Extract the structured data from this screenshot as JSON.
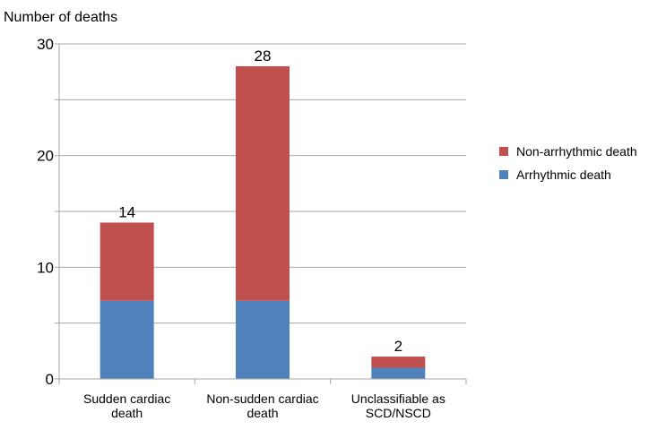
{
  "chart_data": {
    "type": "bar",
    "stacked": true,
    "ylabel": "Number of deaths",
    "categories": [
      [
        "Sudden cardiac",
        "death"
      ],
      [
        "Non-sudden cardiac",
        "death"
      ],
      [
        "Unclassifiable as",
        "SCD/NSCD"
      ]
    ],
    "series": [
      {
        "name": "Arrhythmic death",
        "color": "#4f81bd",
        "values": [
          7,
          7,
          1
        ]
      },
      {
        "name": "Non-arrhythmic death",
        "color": "#c0504d",
        "values": [
          7,
          21,
          1
        ]
      }
    ],
    "totals": [
      "14",
      "28",
      "2"
    ],
    "ylim": [
      0,
      30
    ],
    "yticks": [
      0,
      10,
      20,
      30
    ],
    "grid": true,
    "legend_position": "right"
  }
}
